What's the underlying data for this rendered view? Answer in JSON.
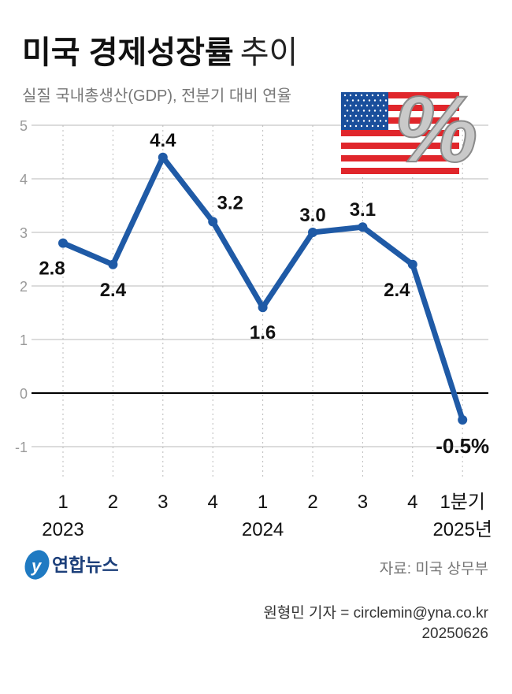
{
  "title_bold": "미국 경제성장률",
  "title_light": "추이",
  "subtitle": "실질 국내총생산(GDP), 전분기 대비 연율",
  "source": "자료: 미국 상무부",
  "credit": "원형민 기자 = circlemin@yna.co.kr",
  "date": "20250626",
  "logo_text": "연합뉴스",
  "colors": {
    "line": "#1f5aa6",
    "zero_line": "#000000",
    "grid": "#c8c8c8",
    "tick": "#9a9a9a"
  },
  "chart_data": {
    "type": "line",
    "title": "미국 경제성장률 추이",
    "ylabel": "",
    "xlabel": "",
    "ylim": [
      -1,
      5
    ],
    "yticks": [
      "5",
      "4",
      "3",
      "2",
      "1",
      "0",
      "-1"
    ],
    "grid": true,
    "categories": [
      "1",
      "2",
      "3",
      "4",
      "1",
      "2",
      "3",
      "4",
      "1분기"
    ],
    "year_labels": [
      {
        "index": 0,
        "label": "2023"
      },
      {
        "index": 4,
        "label": "2024"
      },
      {
        "index": 8,
        "label": "2025년"
      }
    ],
    "values": [
      2.8,
      2.4,
      4.4,
      3.2,
      1.6,
      3.0,
      3.1,
      2.4,
      -0.5
    ],
    "data_labels": [
      "2.8",
      "2.4",
      "4.4",
      "3.2",
      "1.6",
      "3.0",
      "3.1",
      "2.4",
      "-0.5%"
    ]
  }
}
